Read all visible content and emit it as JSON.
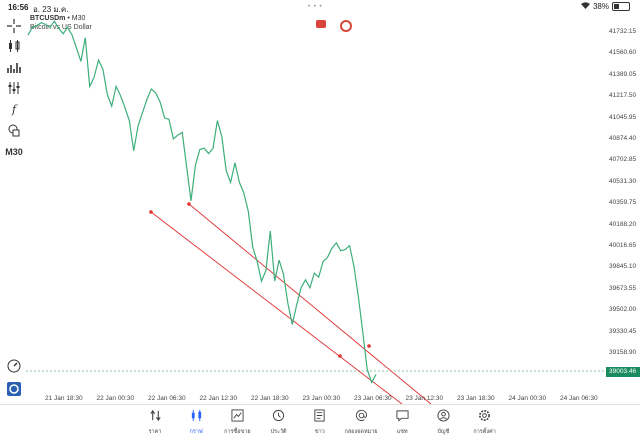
{
  "status": {
    "time": "16:56",
    "date": "อ. 23 ม.ค.",
    "battery": "38%",
    "battery_level": 0.38
  },
  "chart": {
    "symbol": "BTCUSDm",
    "timeframe": "M30",
    "description": "Bitcoin vs US Dollar",
    "current_price": "39003.46",
    "price_labels": [
      "41732.15",
      "41560.60",
      "41389.05",
      "41217.50",
      "41045.95",
      "40874.40",
      "40702.85",
      "40531.30",
      "40359.75",
      "40188.20",
      "40016.65",
      "39845.10",
      "39673.55",
      "39502.00",
      "39330.45",
      "39158.90"
    ],
    "time_labels": [
      "21 Jan 18:30",
      "22 Jan 00:30",
      "22 Jan 06:30",
      "22 Jan 12:30",
      "22 Jan 18:30",
      "23 Jan 00:30",
      "23 Jan 06:30",
      "23 Jan 12:30",
      "23 Jan 18:30",
      "24 Jan 00:30",
      "24 Jan 06:30"
    ]
  },
  "chart_data": {
    "type": "line",
    "ylim": [
      38950,
      41800
    ],
    "grid": false,
    "series": [
      {
        "values": [
          41640,
          41700,
          41710,
          41735,
          41720,
          41700,
          41745,
          41690,
          41650,
          41700,
          41640,
          41540,
          41440,
          41620,
          41250,
          41320,
          41450,
          41380,
          41190,
          41100,
          41250,
          41180,
          41090,
          40990,
          40760,
          40950,
          41050,
          41150,
          41230,
          41200,
          41130,
          41010,
          41000,
          40850,
          40880,
          40900,
          40640,
          40380,
          40650,
          40770,
          40780,
          40740,
          40780,
          40990,
          40870,
          40610,
          40520,
          40670,
          40520,
          40440,
          40300,
          40030,
          39920,
          39770,
          39850,
          40150,
          39770,
          39930,
          39820,
          39600,
          39440,
          39590,
          39720,
          39780,
          39720,
          39830,
          39800,
          39920,
          39950,
          40020,
          40060,
          40000,
          40010,
          40040,
          39880,
          39650,
          39380,
          39100,
          39000,
          39060
        ]
      }
    ]
  },
  "toolbar": {
    "tf_label": "M30"
  },
  "tabs": [
    {
      "label": "ราคา",
      "icon": "quotes-icon"
    },
    {
      "label": "กราฟ",
      "icon": "chart-icon",
      "active": true
    },
    {
      "label": "การซื้อขาย",
      "icon": "trade-icon"
    },
    {
      "label": "ประวัติ",
      "icon": "history-icon"
    },
    {
      "label": "ข่าว",
      "icon": "news-icon"
    },
    {
      "label": "กล่องจดหมาย",
      "icon": "mailbox-icon"
    },
    {
      "label": "แชท",
      "icon": "chat-icon"
    },
    {
      "label": "บัญชี",
      "icon": "account-icon"
    },
    {
      "label": "การตั้งค่า",
      "icon": "settings-icon"
    }
  ],
  "colors": {
    "line": "#3dae7a",
    "trendline": "#e03030",
    "active": "#2962ff",
    "price_badge": "#1a8a5f"
  }
}
